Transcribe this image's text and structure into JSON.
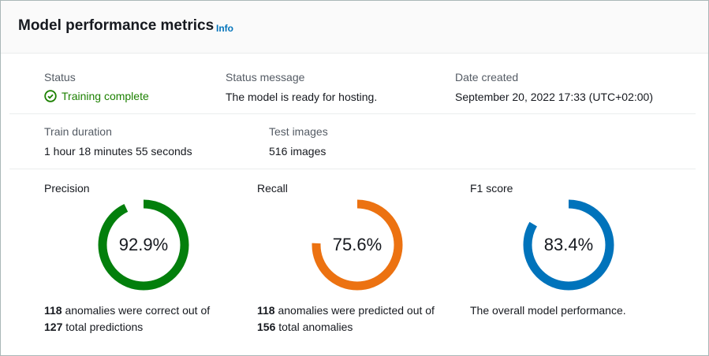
{
  "header": {
    "title": "Model performance metrics",
    "info": "Info"
  },
  "status": {
    "label": "Status",
    "value": "Training complete",
    "icon": "check-circle-icon"
  },
  "status_message": {
    "label": "Status message",
    "value": "The model is ready for hosting."
  },
  "date_created": {
    "label": "Date created",
    "value": "September 20, 2022 17:33 (UTC+02:00)"
  },
  "train_duration": {
    "label": "Train duration",
    "value": "1 hour 18 minutes 55 seconds"
  },
  "test_images": {
    "label": "Test images",
    "value": "516 images"
  },
  "metrics": [
    {
      "label": "Precision",
      "percent": 92.9,
      "display": "92.9%",
      "color": "#037f0c",
      "desc_num1": "118",
      "desc_mid": " anomalies were correct out of",
      "desc_num2": "127",
      "desc_end": " total predictions"
    },
    {
      "label": "Recall",
      "percent": 75.6,
      "display": "75.6%",
      "color": "#ec7211",
      "desc_num1": "118",
      "desc_mid": " anomalies were predicted out of",
      "desc_num2": "156",
      "desc_end": " total anomalies"
    },
    {
      "label": "F1 score",
      "percent": 83.4,
      "display": "83.4%",
      "color": "#0073bb",
      "desc_text": "The overall model performance."
    }
  ]
}
